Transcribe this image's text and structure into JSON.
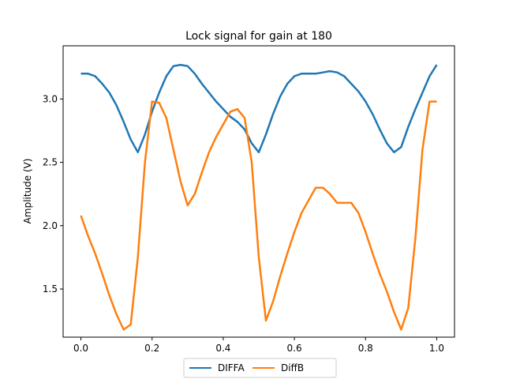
{
  "chart_data": {
    "type": "line",
    "title": "Lock signal for gain at 180",
    "xlabel": "",
    "ylabel": "Amplitude (V)",
    "xlim": [
      -0.05,
      1.05
    ],
    "ylim": [
      1.12,
      3.42
    ],
    "xticks": [
      0.0,
      0.2,
      0.4,
      0.6,
      0.8,
      1.0
    ],
    "xtick_labels": [
      "0.0",
      "0.2",
      "0.4",
      "0.6",
      "0.8",
      "1.0"
    ],
    "yticks": [
      1.5,
      2.0,
      2.5,
      3.0
    ],
    "ytick_labels": [
      "1.5",
      "2.0",
      "2.5",
      "3.0"
    ],
    "grid": false,
    "legend_position": "below plot, centered",
    "series": [
      {
        "name": "DIFFA",
        "color": "#1f77b4",
        "x": [
          0.0,
          0.02,
          0.04,
          0.06,
          0.08,
          0.1,
          0.12,
          0.14,
          0.16,
          0.18,
          0.2,
          0.22,
          0.24,
          0.26,
          0.28,
          0.3,
          0.32,
          0.34,
          0.36,
          0.38,
          0.4,
          0.42,
          0.44,
          0.46,
          0.48,
          0.5,
          0.52,
          0.54,
          0.56,
          0.58,
          0.6,
          0.62,
          0.64,
          0.66,
          0.68,
          0.7,
          0.72,
          0.74,
          0.76,
          0.78,
          0.8,
          0.82,
          0.84,
          0.86,
          0.88,
          0.9,
          0.92,
          0.94,
          0.96,
          0.98,
          1.0
        ],
        "y": [
          3.2,
          3.2,
          3.18,
          3.12,
          3.05,
          2.95,
          2.82,
          2.68,
          2.58,
          2.72,
          2.9,
          3.05,
          3.18,
          3.26,
          3.27,
          3.26,
          3.2,
          3.12,
          3.05,
          2.98,
          2.92,
          2.86,
          2.82,
          2.76,
          2.65,
          2.58,
          2.72,
          2.88,
          3.02,
          3.12,
          3.18,
          3.2,
          3.2,
          3.2,
          3.21,
          3.22,
          3.21,
          3.18,
          3.12,
          3.06,
          2.98,
          2.88,
          2.76,
          2.65,
          2.58,
          2.62,
          2.78,
          2.92,
          3.05,
          3.18,
          3.27
        ]
      },
      {
        "name": "DiffB",
        "color": "#ff7f0e",
        "x": [
          0.0,
          0.02,
          0.04,
          0.06,
          0.08,
          0.1,
          0.12,
          0.14,
          0.16,
          0.18,
          0.2,
          0.22,
          0.24,
          0.26,
          0.28,
          0.3,
          0.32,
          0.34,
          0.36,
          0.38,
          0.4,
          0.42,
          0.44,
          0.46,
          0.48,
          0.5,
          0.52,
          0.54,
          0.56,
          0.58,
          0.6,
          0.62,
          0.64,
          0.66,
          0.68,
          0.7,
          0.72,
          0.74,
          0.76,
          0.78,
          0.8,
          0.82,
          0.84,
          0.86,
          0.88,
          0.9,
          0.92,
          0.94,
          0.96,
          0.98,
          1.0
        ],
        "y": [
          2.08,
          1.92,
          1.78,
          1.62,
          1.45,
          1.3,
          1.18,
          1.22,
          1.75,
          2.5,
          2.98,
          2.97,
          2.85,
          2.6,
          2.35,
          2.16,
          2.25,
          2.42,
          2.58,
          2.7,
          2.8,
          2.9,
          2.92,
          2.85,
          2.5,
          1.75,
          1.25,
          1.4,
          1.6,
          1.78,
          1.95,
          2.1,
          2.2,
          2.3,
          2.3,
          2.25,
          2.18,
          2.18,
          2.18,
          2.1,
          1.95,
          1.78,
          1.62,
          1.48,
          1.32,
          1.18,
          1.35,
          1.9,
          2.6,
          2.98,
          2.98
        ]
      }
    ]
  }
}
